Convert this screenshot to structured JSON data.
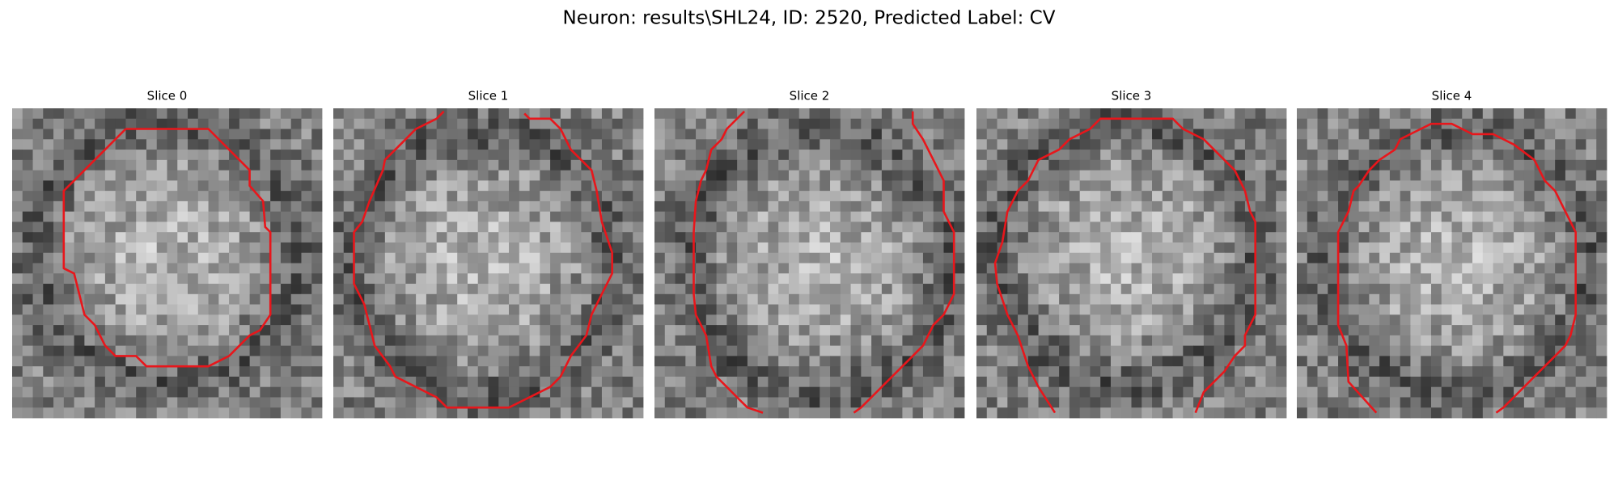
{
  "title": "Neuron: results\\SHL24, ID: 2520, Predicted Label: CV",
  "panels": [
    {
      "title": "Slice 0"
    },
    {
      "title": "Slice 1"
    },
    {
      "title": "Slice 2"
    },
    {
      "title": "Slice 3"
    },
    {
      "title": "Slice 4"
    }
  ]
}
